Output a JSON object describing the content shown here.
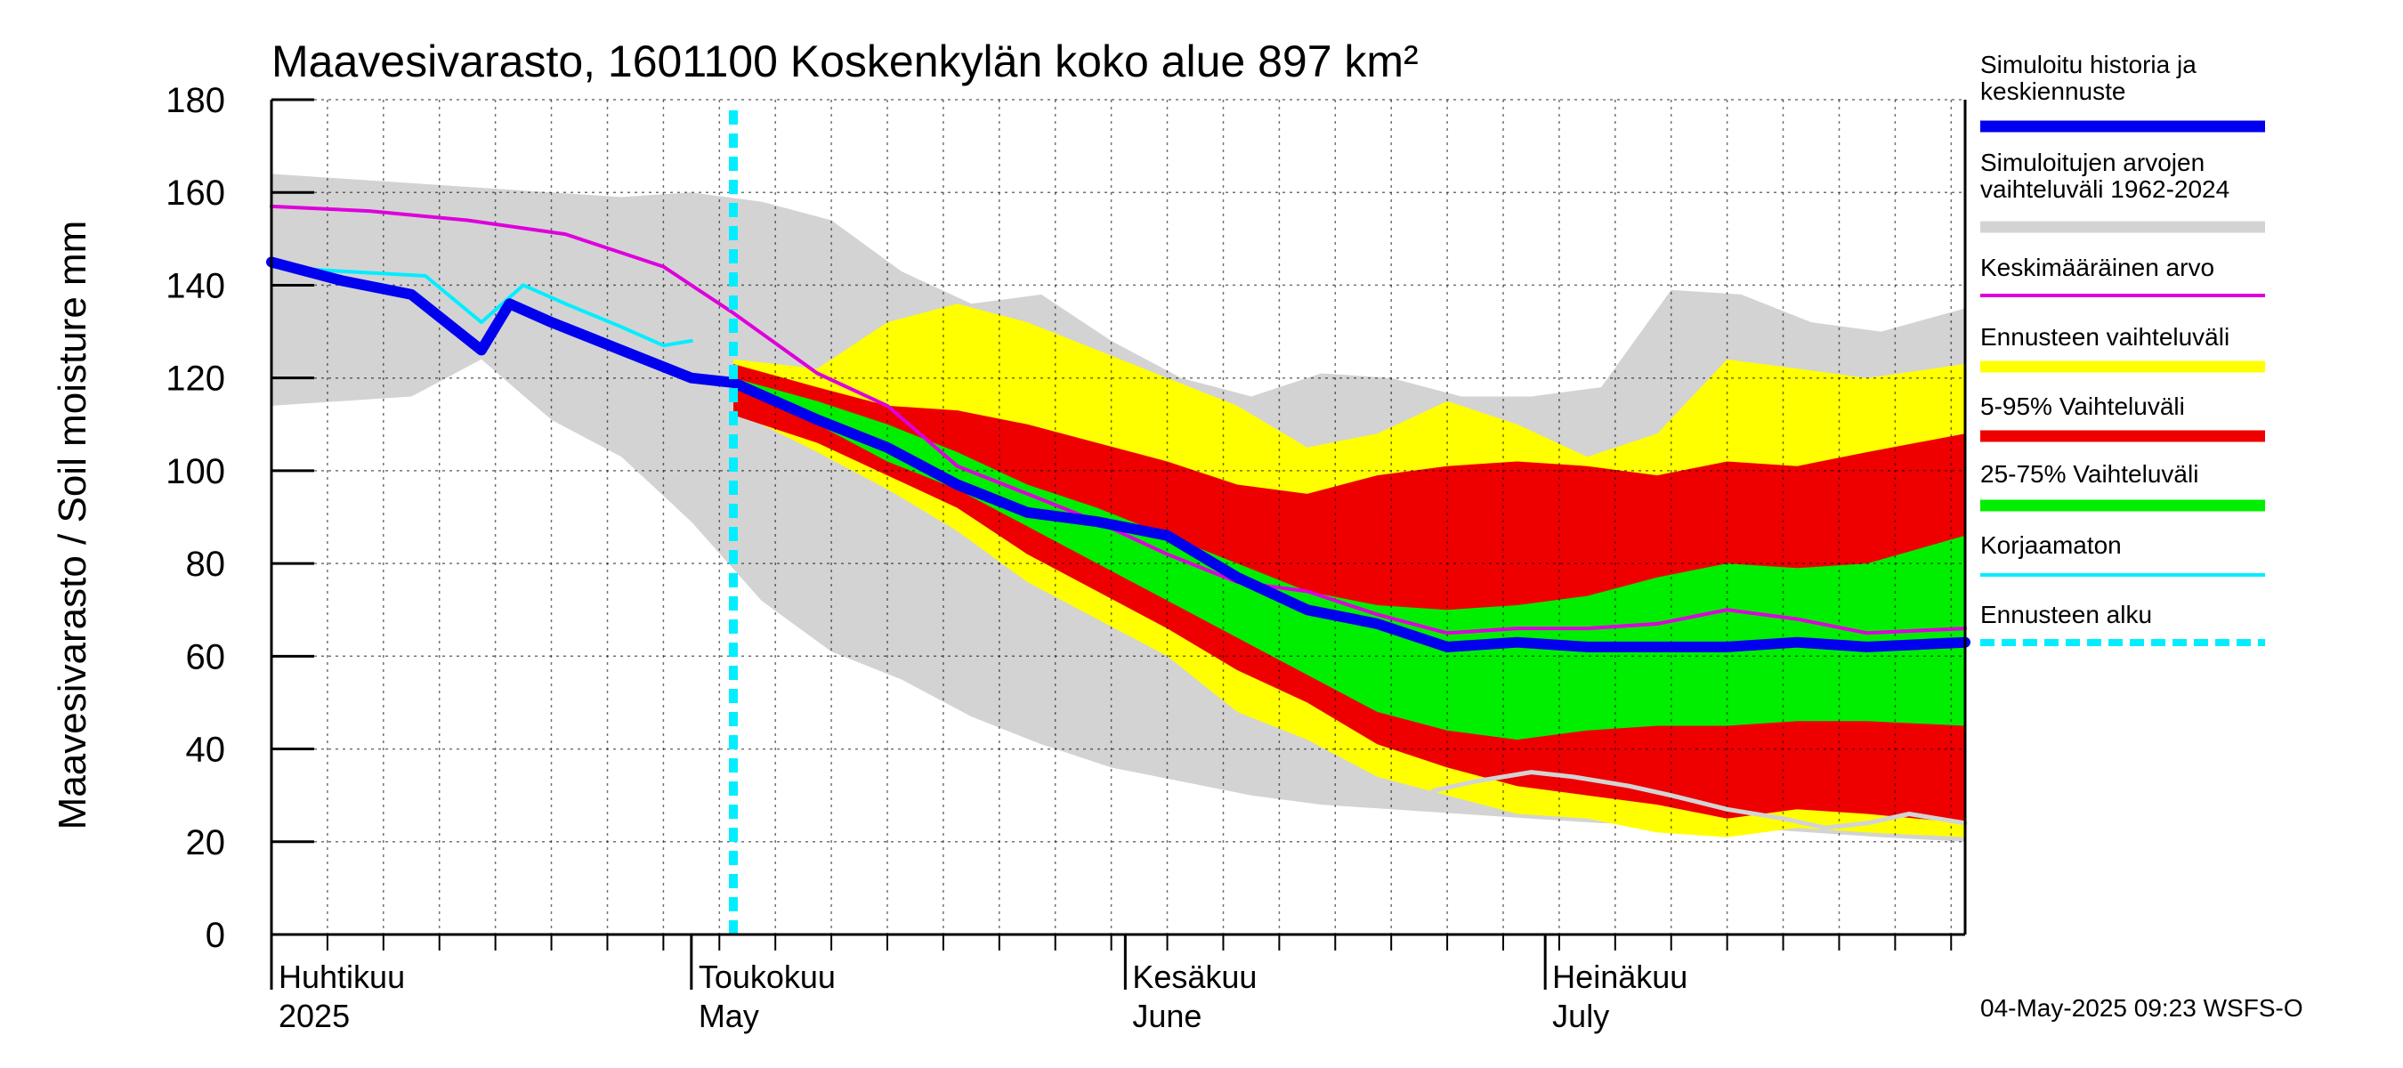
{
  "chart_data": {
    "type": "area",
    "title": "Maavesivarasto, 1601100 Koskenkylän koko alue 897 km²",
    "ylabel": "Maavesivarasto / Soil moisture   mm",
    "ylim": [
      0,
      180
    ],
    "yticks": [
      0,
      20,
      40,
      60,
      80,
      100,
      120,
      140,
      160,
      180
    ],
    "x_range": [
      "2025-04-01",
      "2025-07-31"
    ],
    "grid": true,
    "legend_position": "right",
    "forecast_start": "2025-05-04",
    "months": [
      {
        "date": "2025-04-01",
        "label_fi": "Huhtikuu",
        "label_en": "2025"
      },
      {
        "date": "2025-05-01",
        "label_fi": "Toukokuu",
        "label_en": "May"
      },
      {
        "date": "2025-06-01",
        "label_fi": "Kesäkuu",
        "label_en": "June"
      },
      {
        "date": "2025-07-01",
        "label_fi": "Heinäkuu",
        "label_en": "July"
      }
    ],
    "colors": {
      "simulated": "#0000ee",
      "historical_range": "#d3d3d3",
      "mean": "#dd00dd",
      "forecast_range": "#ffff00",
      "p5_95": "#ee0000",
      "p25_75": "#00ee00",
      "uncorrected": "#00eeff",
      "forecast_start": "#00eeff",
      "low_history": "#d3d3d3"
    },
    "legend": [
      {
        "label": "Simuloitu historia ja keskiennuste",
        "key": "simulated",
        "style": "thick"
      },
      {
        "label": "Simuloitujen arvojen vaihteluväli 1962-2024",
        "key": "historical_range",
        "style": "thick"
      },
      {
        "label": "Keskimääräinen arvo",
        "key": "mean",
        "style": "thin"
      },
      {
        "label": "Ennusteen vaihteluväli",
        "key": "forecast_range",
        "style": "thick"
      },
      {
        "label": "5-95% Vaihteluväli",
        "key": "p5_95",
        "style": "thick"
      },
      {
        "label": "25-75% Vaihteluväli",
        "key": "p25_75",
        "style": "thick"
      },
      {
        "label": "Korjaamaton",
        "key": "uncorrected",
        "style": "thin"
      },
      {
        "label": "Ennusteen alku",
        "key": "forecast_start",
        "style": "dashed"
      }
    ],
    "series": [
      {
        "key": "historical_range",
        "kind": "band",
        "x": [
          "2025-04-01",
          "2025-04-06",
          "2025-04-11",
          "2025-04-16",
          "2025-04-21",
          "2025-04-26",
          "2025-05-01",
          "2025-05-06",
          "2025-05-11",
          "2025-05-16",
          "2025-05-21",
          "2025-05-26",
          "2025-05-31",
          "2025-06-05",
          "2025-06-10",
          "2025-06-15",
          "2025-06-20",
          "2025-06-25",
          "2025-06-30",
          "2025-07-05",
          "2025-07-10",
          "2025-07-15",
          "2025-07-20",
          "2025-07-25",
          "2025-07-31"
        ],
        "upper": [
          164,
          163,
          162,
          161,
          160,
          159,
          160,
          158,
          154,
          143,
          136,
          138,
          128,
          120,
          116,
          121,
          120,
          116,
          116,
          118,
          139,
          138,
          132,
          130,
          135
        ],
        "lower": [
          114,
          115,
          116,
          124,
          111,
          103,
          89,
          72,
          61,
          55,
          47,
          41,
          36,
          33,
          30,
          28,
          27,
          26,
          25,
          24,
          24,
          23,
          22,
          21,
          20
        ]
      },
      {
        "key": "forecast_range",
        "kind": "band",
        "x": [
          "2025-05-04",
          "2025-05-10",
          "2025-05-15",
          "2025-05-20",
          "2025-05-25",
          "2025-05-30",
          "2025-06-04",
          "2025-06-09",
          "2025-06-14",
          "2025-06-19",
          "2025-06-24",
          "2025-06-29",
          "2025-07-04",
          "2025-07-09",
          "2025-07-14",
          "2025-07-19",
          "2025-07-24",
          "2025-07-31"
        ],
        "upper": [
          124,
          122,
          132,
          136,
          132,
          126,
          120,
          114,
          105,
          108,
          115,
          110,
          103,
          108,
          124,
          122,
          120,
          123
        ],
        "lower": [
          113,
          104,
          96,
          87,
          76,
          68,
          60,
          48,
          42,
          34,
          30,
          26,
          25,
          22,
          21,
          23,
          22,
          21
        ]
      },
      {
        "key": "p5_95",
        "kind": "band",
        "x": [
          "2025-05-04",
          "2025-05-10",
          "2025-05-15",
          "2025-05-20",
          "2025-05-25",
          "2025-05-30",
          "2025-06-04",
          "2025-06-09",
          "2025-06-14",
          "2025-06-19",
          "2025-06-24",
          "2025-06-29",
          "2025-07-04",
          "2025-07-09",
          "2025-07-14",
          "2025-07-19",
          "2025-07-24",
          "2025-07-31"
        ],
        "upper": [
          123,
          118,
          114,
          113,
          110,
          106,
          102,
          97,
          95,
          99,
          101,
          102,
          101,
          99,
          102,
          101,
          104,
          108
        ],
        "lower": [
          112,
          106,
          99,
          92,
          82,
          74,
          66,
          57,
          50,
          41,
          36,
          32,
          30,
          28,
          25,
          27,
          26,
          24
        ]
      },
      {
        "key": "p25_75",
        "kind": "band",
        "x": [
          "2025-05-04",
          "2025-05-10",
          "2025-05-15",
          "2025-05-20",
          "2025-05-25",
          "2025-05-30",
          "2025-06-04",
          "2025-06-09",
          "2025-06-14",
          "2025-06-19",
          "2025-06-24",
          "2025-06-29",
          "2025-07-04",
          "2025-07-09",
          "2025-07-14",
          "2025-07-19",
          "2025-07-24",
          "2025-07-31"
        ],
        "upper": [
          120,
          115,
          110,
          104,
          97,
          92,
          86,
          80,
          74,
          71,
          70,
          71,
          73,
          77,
          80,
          79,
          80,
          86
        ],
        "lower": [
          118,
          110,
          102,
          96,
          88,
          80,
          72,
          64,
          56,
          48,
          44,
          42,
          44,
          45,
          45,
          46,
          46,
          45
        ]
      },
      {
        "key": "low_history",
        "kind": "line",
        "x": [
          "2025-06-23",
          "2025-06-26",
          "2025-06-30",
          "2025-07-03",
          "2025-07-07",
          "2025-07-10",
          "2025-07-14",
          "2025-07-18",
          "2025-07-21",
          "2025-07-24",
          "2025-07-27",
          "2025-07-31"
        ],
        "values": [
          31,
          33,
          35,
          34,
          32,
          30,
          27,
          25,
          23,
          24,
          26,
          24
        ]
      },
      {
        "key": "mean",
        "kind": "line",
        "x": [
          "2025-04-01",
          "2025-04-08",
          "2025-04-15",
          "2025-04-22",
          "2025-04-29",
          "2025-05-04",
          "2025-05-10",
          "2025-05-15",
          "2025-05-20",
          "2025-05-25",
          "2025-05-30",
          "2025-06-04",
          "2025-06-09",
          "2025-06-14",
          "2025-06-19",
          "2025-06-24",
          "2025-06-29",
          "2025-07-04",
          "2025-07-09",
          "2025-07-14",
          "2025-07-19",
          "2025-07-24",
          "2025-07-31"
        ],
        "values": [
          157,
          156,
          154,
          151,
          144,
          134,
          121,
          114,
          101,
          95,
          89,
          82,
          76,
          74,
          69,
          65,
          66,
          66,
          67,
          70,
          68,
          65,
          66
        ]
      },
      {
        "key": "uncorrected",
        "kind": "line",
        "x": [
          "2025-04-01",
          "2025-04-06",
          "2025-04-12",
          "2025-04-16",
          "2025-04-19",
          "2025-04-22",
          "2025-04-26",
          "2025-04-29",
          "2025-05-01"
        ],
        "values": [
          144,
          143,
          142,
          132,
          140,
          136,
          131,
          127,
          128
        ]
      },
      {
        "key": "simulated",
        "kind": "line",
        "x": [
          "2025-04-01",
          "2025-04-06",
          "2025-04-11",
          "2025-04-16",
          "2025-04-18",
          "2025-04-21",
          "2025-04-26",
          "2025-05-01",
          "2025-05-04",
          "2025-05-10",
          "2025-05-15",
          "2025-05-20",
          "2025-05-25",
          "2025-05-30",
          "2025-06-04",
          "2025-06-09",
          "2025-06-14",
          "2025-06-19",
          "2025-06-24",
          "2025-06-29",
          "2025-07-04",
          "2025-07-09",
          "2025-07-14",
          "2025-07-19",
          "2025-07-24",
          "2025-07-31"
        ],
        "values": [
          145,
          141,
          138,
          126,
          136,
          132,
          126,
          120,
          119,
          111,
          105,
          97,
          91,
          89,
          86,
          77,
          70,
          67,
          62,
          63,
          62,
          62,
          62,
          63,
          62,
          63
        ]
      }
    ]
  },
  "footer": {
    "timestamp": "04-May-2025 09:23 WSFS-O"
  }
}
